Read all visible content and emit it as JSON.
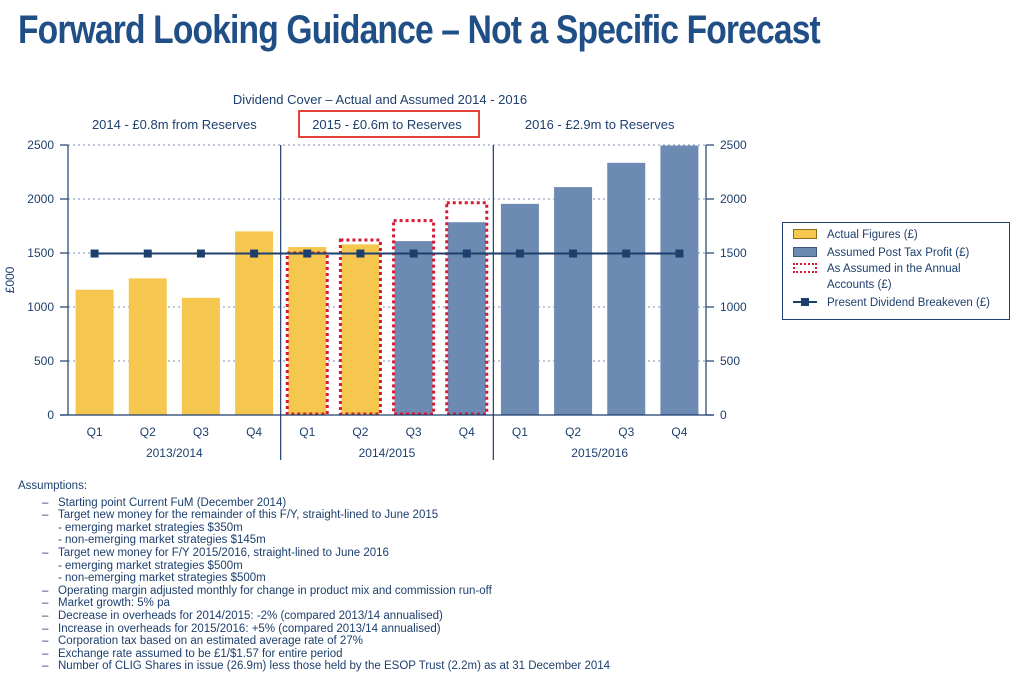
{
  "page_title": "Forward Looking Guidance – Not a Specific Forecast",
  "colors": {
    "actual": "#f5c74e",
    "assumed": "#6c8ab2",
    "navy": "#1d3f6e",
    "highlight": "#e0443c",
    "dotted": "#d61a34"
  },
  "chart_data": {
    "type": "bar",
    "title": "Dividend Cover – Actual and Assumed 2014 - 2016",
    "ylabel": "£000",
    "ylim": [
      0,
      2500
    ],
    "yticks": [
      0,
      500,
      1000,
      1500,
      2000,
      2500
    ],
    "grid": true,
    "legend_position": "right",
    "categories": [
      "Q1",
      "Q2",
      "Q3",
      "Q4",
      "Q1",
      "Q2",
      "Q3",
      "Q4",
      "Q1",
      "Q2",
      "Q3",
      "Q4"
    ],
    "groups": [
      {
        "label": "2013/2014",
        "header": "2014 - £0.8m from Reserves",
        "highlighted": false
      },
      {
        "label": "2014/2015",
        "header": "2015 - £0.6m to Reserves",
        "highlighted": true
      },
      {
        "label": "2015/2016",
        "header": "2016 - £2.9m to Reserves",
        "highlighted": false
      }
    ],
    "series": [
      {
        "name": "Actual Figures (£)",
        "kind": "bar",
        "values": [
          1160,
          1265,
          1085,
          1700,
          1555,
          1580,
          null,
          null,
          null,
          null,
          null,
          null
        ]
      },
      {
        "name": "Assumed Post Tax Profit (£)",
        "kind": "bar",
        "values": [
          null,
          null,
          null,
          null,
          null,
          null,
          1610,
          1785,
          1955,
          2110,
          2335,
          2495
        ]
      },
      {
        "name": "As Assumed in the Annual Accounts (£)",
        "kind": "dotted-outline",
        "values": [
          null,
          null,
          null,
          null,
          1500,
          1620,
          1800,
          1965,
          null,
          null,
          null,
          null
        ]
      },
      {
        "name": "Present Dividend Breakeven (£)",
        "kind": "line",
        "values": [
          1495,
          1495,
          1495,
          1495,
          1495,
          1495,
          1495,
          1495,
          1495,
          1495,
          1495,
          1495
        ]
      }
    ]
  },
  "legend": {
    "items": [
      {
        "label": "Actual Figures (£)",
        "type": "fill-actual"
      },
      {
        "label": "Assumed Post Tax Profit (£)",
        "type": "fill-assumed"
      },
      {
        "label": "As Assumed in the Annual Accounts (£)",
        "type": "dotted"
      },
      {
        "label": "Present Dividend Breakeven (£)",
        "type": "line"
      }
    ]
  },
  "assumptions": {
    "heading": "Assumptions:",
    "items": [
      {
        "text": "Starting point Current FuM (December 2014)",
        "sub": []
      },
      {
        "text": "Target new money for the remainder of this F/Y, straight-lined to June 2015",
        "sub": [
          "- emerging market strategies $350m",
          "- non-emerging market strategies $145m"
        ]
      },
      {
        "text": "Target new money for F/Y 2015/2016, straight-lined to June 2016",
        "sub": [
          "- emerging market strategies $500m",
          "- non-emerging market strategies $500m"
        ]
      },
      {
        "text": "Operating margin adjusted monthly for change in product mix and commission run-off",
        "sub": []
      },
      {
        "text": "Market growth: 5% pa",
        "sub": []
      },
      {
        "text": "Decrease in overheads for 2014/2015: -2% (compared 2013/14 annualised)",
        "sub": []
      },
      {
        "text": "Increase in overheads for 2015/2016: +5% (compared 2013/14 annualised)",
        "sub": []
      },
      {
        "text": "Corporation tax based on an estimated average rate of 27%",
        "sub": []
      },
      {
        "text": "Exchange rate assumed to be £1/$1.57 for entire period",
        "sub": []
      },
      {
        "text": "Number of CLIG Shares in issue (26.9m) less those held by the ESOP Trust (2.2m) as at 31 December 2014",
        "sub": []
      }
    ]
  }
}
